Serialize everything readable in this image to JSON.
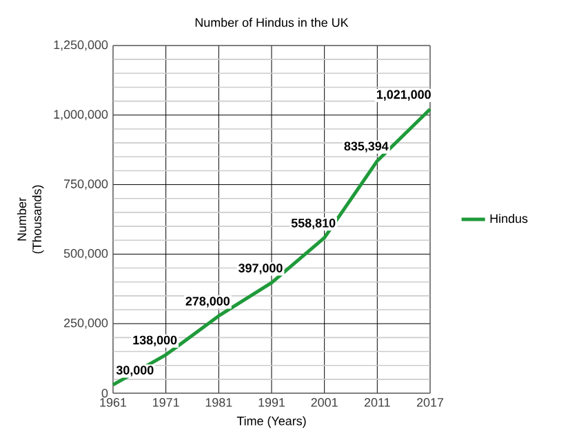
{
  "chart_data": {
    "type": "line",
    "title": "Number of Hindus in the UK",
    "xlabel": "Time (Years)",
    "ylabel": "Number\n(Thousands)",
    "categories": [
      "1961",
      "1971",
      "1981",
      "1991",
      "2001",
      "2011",
      "2017"
    ],
    "series": [
      {
        "name": "Hindus",
        "color": "#1f9a3a",
        "values": [
          30000,
          138000,
          278000,
          397000,
          558810,
          835394,
          1021000
        ],
        "value_labels": [
          "30,000",
          "138,000",
          "278,000",
          "397,000",
          "558,810",
          "835,394",
          "1,021,000"
        ]
      }
    ],
    "ylim": [
      0,
      1250000
    ],
    "yticks": [
      {
        "value": 0,
        "label": "0"
      },
      {
        "value": 250000,
        "label": "250,000"
      },
      {
        "value": 500000,
        "label": "500,000"
      },
      {
        "value": 750000,
        "label": "750,000"
      },
      {
        "value": 1000000,
        "label": "1,000,000"
      },
      {
        "value": 1250000,
        "label": "1,250,000"
      }
    ],
    "grid": true,
    "legend": "right",
    "marker": "none",
    "line_style": "solid"
  }
}
